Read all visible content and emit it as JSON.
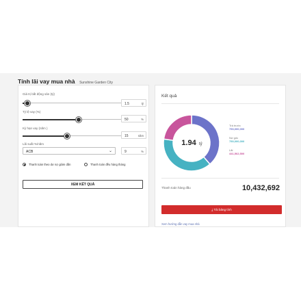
{
  "header": {
    "title": "Tính lãi vay mua nhà",
    "subtitle": "Sunshine Garden City"
  },
  "form": {
    "price": {
      "label": "Giá trị bất động sản (tỷ)",
      "value": "1.5",
      "unit": "tỷ",
      "level_fraction": 0.04
    },
    "ratio": {
      "label": "Tỷ lệ vay (%)",
      "value": "50",
      "unit": "%",
      "level_fraction": 0.5
    },
    "term": {
      "label": "Kỳ hạn vay (năm )",
      "value": "15",
      "unit": "năm",
      "level_fraction": 0.4
    },
    "rate_label": "Lãi suất %/năm",
    "bank": "ACB",
    "rate": {
      "value": "9",
      "unit": "%"
    },
    "radio_option1": "Thanh toán theo dư nợ giảm dần",
    "radio_option2": "Thanh toán đều hàng tháng",
    "submit": "XEM KẾT QUẢ"
  },
  "result": {
    "title": "Kết quả",
    "center_value": "1.94",
    "center_unit": "tỷ",
    "legend": [
      {
        "label": "Trả trước",
        "value": "750,000,000",
        "color": "#6c73c9"
      },
      {
        "label": "Nợ gốc",
        "value": "750,000,000",
        "color": "#46b2c2"
      },
      {
        "label": "Lãi",
        "value": "441,562,500",
        "color": "#c8559c"
      }
    ],
    "total_label": "Thanh toán hàng đầu",
    "total_value": "10,432,692",
    "download": "Tải bảng tính",
    "download_icon": "download-icon",
    "guide": "Xem hướng dẫn vay mua nhà"
  }
}
